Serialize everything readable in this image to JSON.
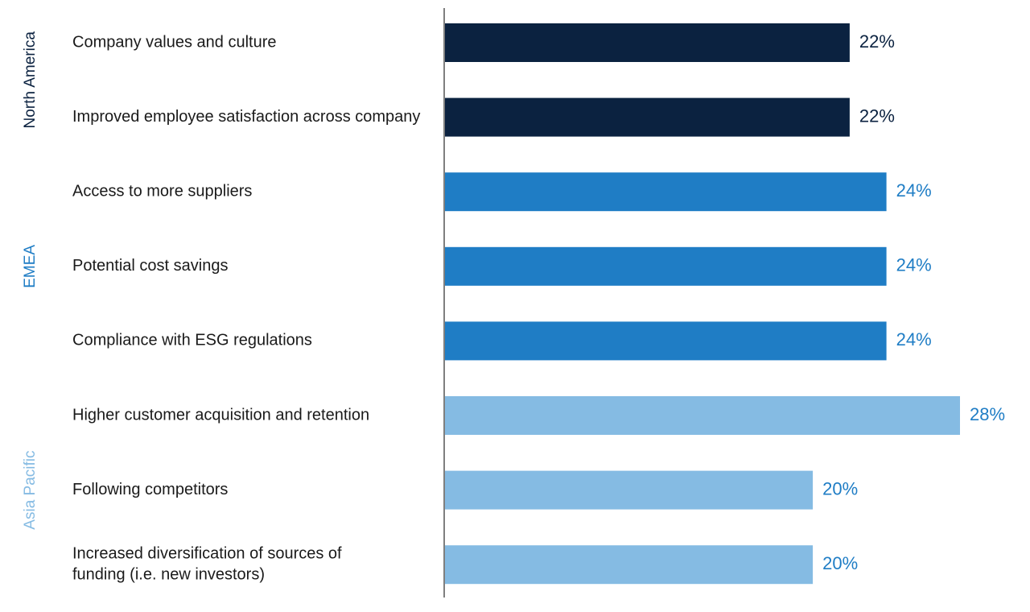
{
  "chart_data": {
    "type": "bar",
    "orientation": "horizontal",
    "value_suffix": "%",
    "xlim": [
      0,
      28
    ],
    "grid": false,
    "groups": [
      {
        "name": "North America",
        "color": "#0b2240",
        "items": [
          {
            "label": [
              "Company values and culture"
            ],
            "value": 22
          },
          {
            "label": [
              "Improved employee satisfaction across company"
            ],
            "value": 22
          }
        ]
      },
      {
        "name": "EMEA",
        "color": "#1f7dc5",
        "items": [
          {
            "label": [
              "Access to more suppliers"
            ],
            "value": 24
          },
          {
            "label": [
              "Potential cost savings"
            ],
            "value": 24
          },
          {
            "label": [
              "Compliance with ESG regulations"
            ],
            "value": 24
          }
        ]
      },
      {
        "name": "Asia Pacific",
        "color": "#85bbe3",
        "items": [
          {
            "label": [
              "Higher customer acquisition and retention"
            ],
            "value": 28
          },
          {
            "label": [
              "Following competitors"
            ],
            "value": 20
          },
          {
            "label": [
              "Increased diversification of sources of",
              "funding (i.e. new investors)"
            ],
            "value": 20
          }
        ]
      }
    ],
    "value_label_colors": {
      "North America": "#0b2240",
      "EMEA": "#1f7dc5",
      "Asia Pacific": "#1f7dc5"
    }
  }
}
